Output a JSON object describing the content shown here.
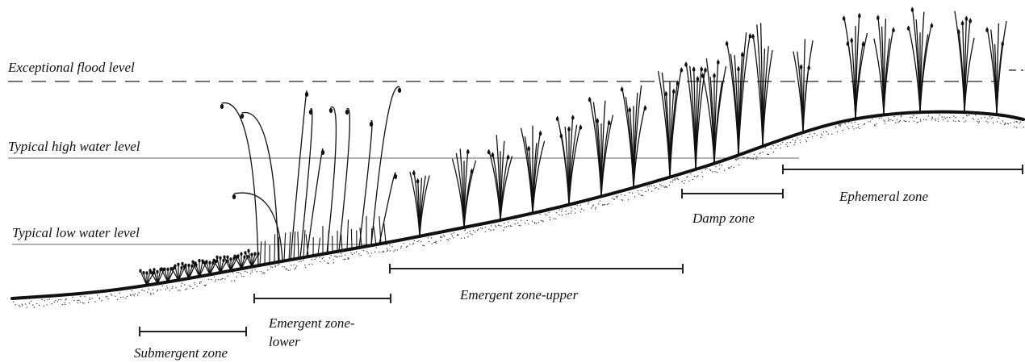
{
  "water_levels": {
    "exceptional_flood": "Exceptional flood level",
    "typical_high": "Typical high water level",
    "typical_low": "Typical low water level"
  },
  "zones": {
    "submergent": "Submergent zone",
    "emergent_lower_line1": "Emergent zone-",
    "emergent_lower_line2": "lower",
    "emergent_upper": "Emergent zone-upper",
    "damp": "Damp zone",
    "ephemeral": "Ephemeral zone"
  }
}
